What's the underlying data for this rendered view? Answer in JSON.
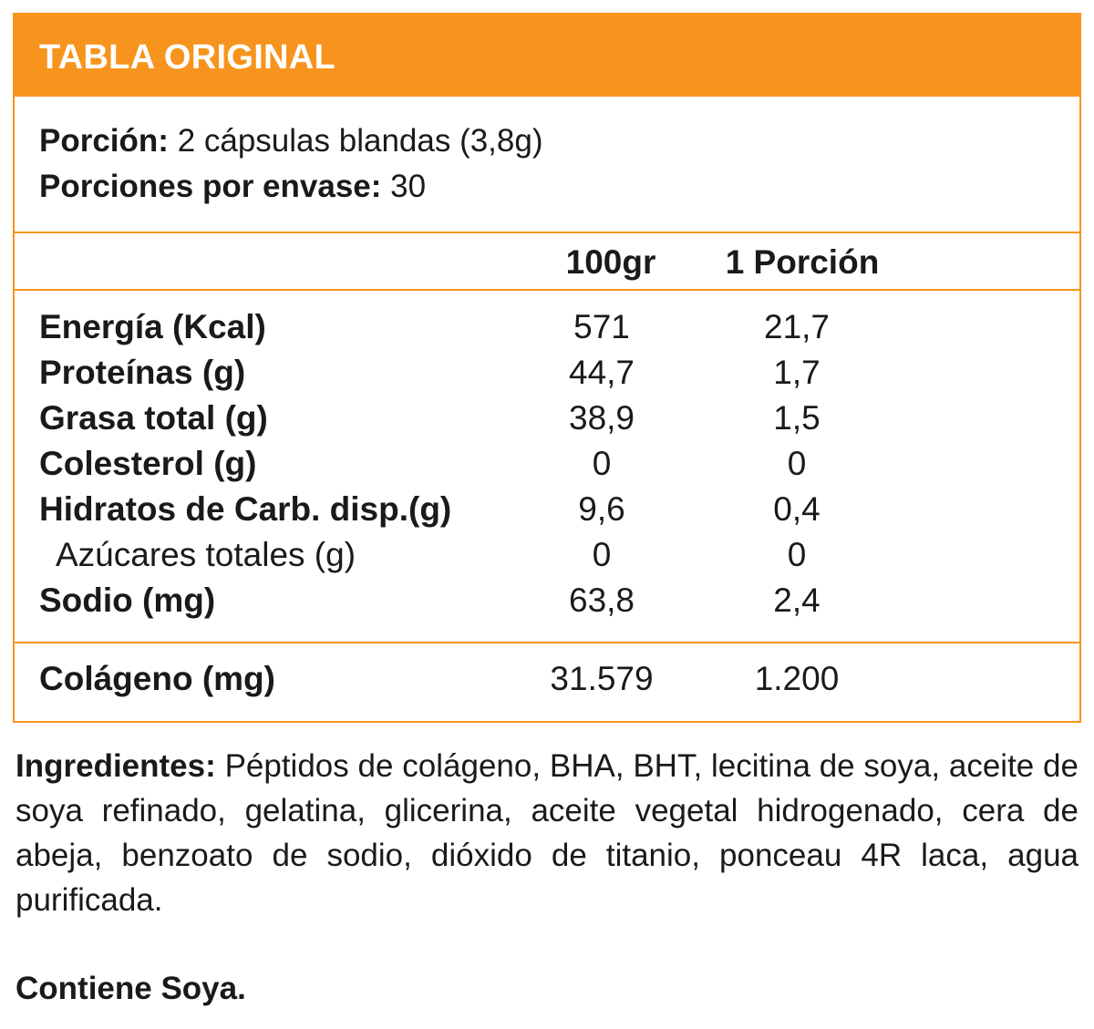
{
  "header": {
    "title": "TABLA ORIGINAL"
  },
  "serving": {
    "portion_label": "Porción:",
    "portion_value": "2 cápsulas blandas (3,8g)",
    "per_container_label": "Porciones por envase:",
    "per_container_value": "30"
  },
  "columns": {
    "per100": "100gr",
    "per_portion": "1 Porción"
  },
  "rows": [
    {
      "label": "Energía (Kcal)",
      "per100": "571",
      "per_portion": "21,7"
    },
    {
      "label": "Proteínas (g)",
      "per100": "44,7",
      "per_portion": "1,7"
    },
    {
      "label": "Grasa total (g)",
      "per100": "38,9",
      "per_portion": "1,5"
    },
    {
      "label": "Colesterol (g)",
      "per100": "0",
      "per_portion": "0"
    },
    {
      "label": "Hidratos de Carb. disp.(g)",
      "per100": "9,6",
      "per_portion": "0,4"
    },
    {
      "label": "Azúcares totales (g)",
      "per100": "0",
      "per_portion": "0"
    },
    {
      "label": "Sodio (mg)",
      "per100": "63,8",
      "per_portion": "2,4"
    }
  ],
  "collagen": {
    "label": "Colágeno (mg)",
    "per100": "31.579",
    "per_portion": "1.200"
  },
  "ingredients": {
    "label": "Ingredientes:",
    "text": "Péptidos de colágeno, BHA, BHT, lecitina de soya, aceite de soya refinado, gelatina, glicerina, aceite vegetal hidroge­nado, cera de abeja, benzoato de sodio, dióxido de titanio, pon­ceau 4R laca, agua purificada."
  },
  "allergen": "Contiene Soya.",
  "colors": {
    "accent": "#f7941d",
    "text": "#1a1a1a",
    "header_text": "#ffffff"
  }
}
